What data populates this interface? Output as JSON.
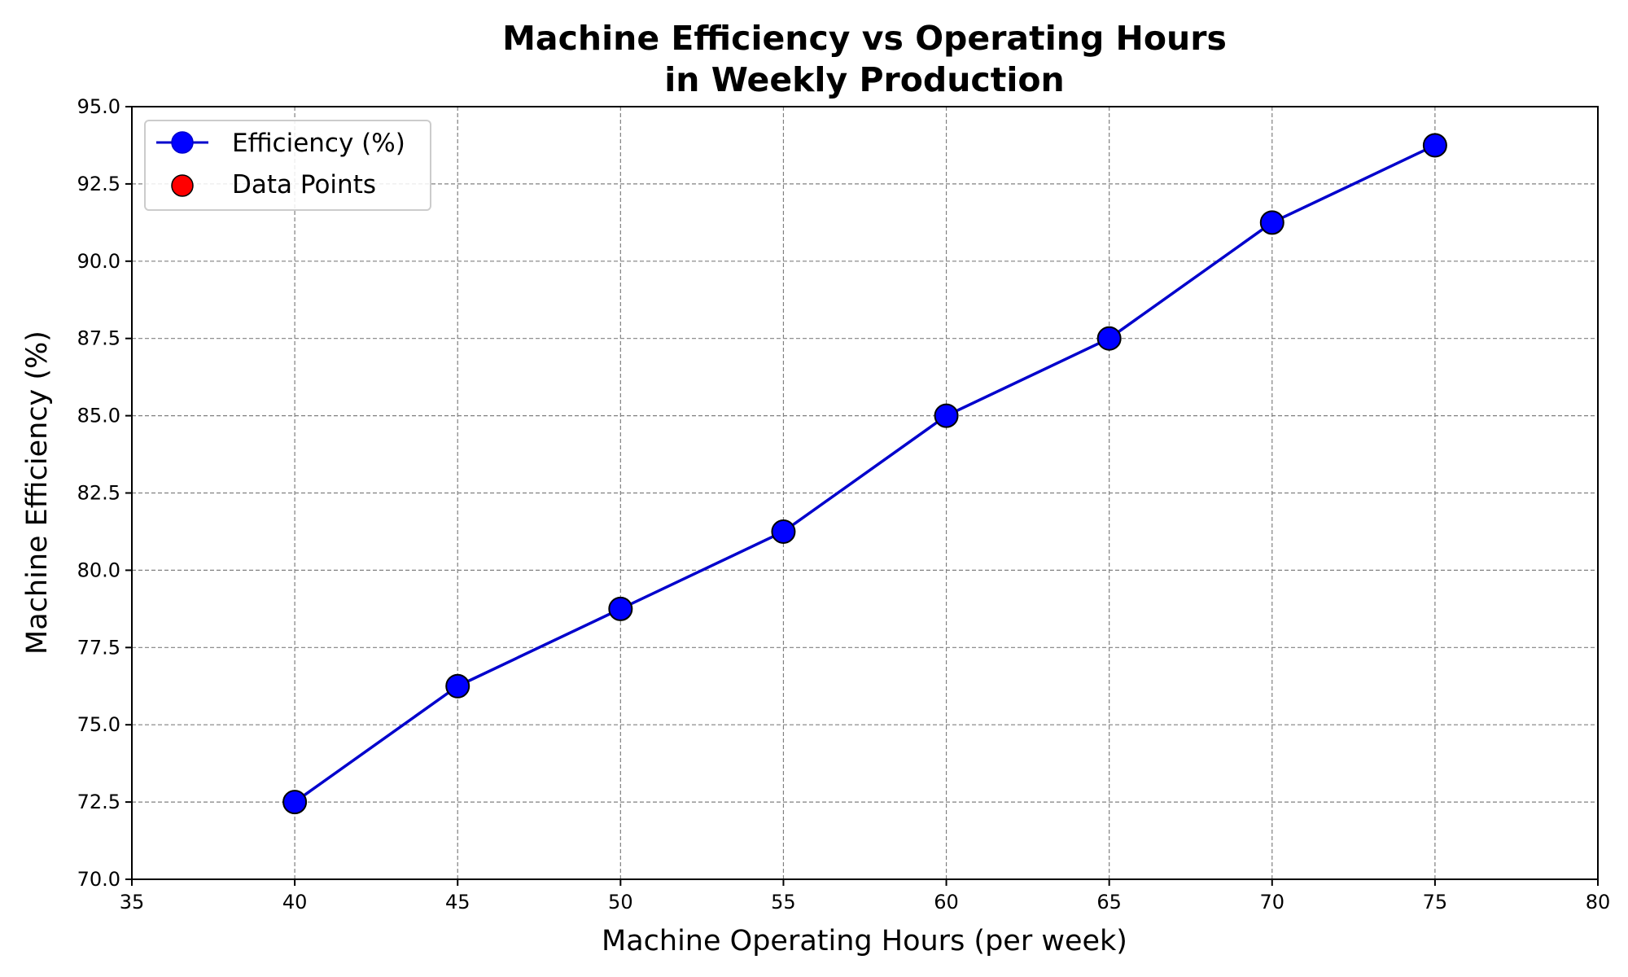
{
  "chart_data": {
    "type": "line",
    "title_line1": "Machine Efficiency vs Operating Hours",
    "title_line2": "in Weekly Production",
    "xlabel": "Machine Operating Hours (per week)",
    "ylabel": "Machine Efficiency (%)",
    "xlim": [
      35,
      80
    ],
    "ylim": [
      70,
      95
    ],
    "x_ticks": [
      35,
      40,
      45,
      50,
      55,
      60,
      65,
      70,
      75,
      80
    ],
    "x_tick_labels": [
      "35",
      "40",
      "45",
      "50",
      "55",
      "60",
      "65",
      "70",
      "75",
      "80"
    ],
    "y_ticks": [
      70,
      72.5,
      75,
      77.5,
      80,
      82.5,
      85,
      87.5,
      90,
      92.5,
      95
    ],
    "y_tick_labels": [
      "70.0",
      "72.5",
      "75.0",
      "77.5",
      "80.0",
      "82.5",
      "85.0",
      "87.5",
      "90.0",
      "92.5",
      "95.0"
    ],
    "grid": true,
    "legend_position": "top-left",
    "series": [
      {
        "name": "Efficiency (%)",
        "kind": "line-marker",
        "color": "#0000cc",
        "marker_color": "#0000ff",
        "x": [
          40,
          45,
          50,
          55,
          60,
          65,
          70,
          75
        ],
        "y": [
          72.5,
          76.25,
          78.75,
          81.25,
          85.0,
          87.5,
          91.25,
          93.75
        ]
      },
      {
        "name": "Data Points",
        "kind": "scatter",
        "color": "#ff0000",
        "x": [
          40,
          45,
          50,
          55,
          60,
          65,
          70,
          75
        ],
        "y": [
          72.5,
          76.25,
          78.75,
          81.25,
          85.0,
          87.5,
          91.25,
          93.75
        ]
      }
    ]
  }
}
